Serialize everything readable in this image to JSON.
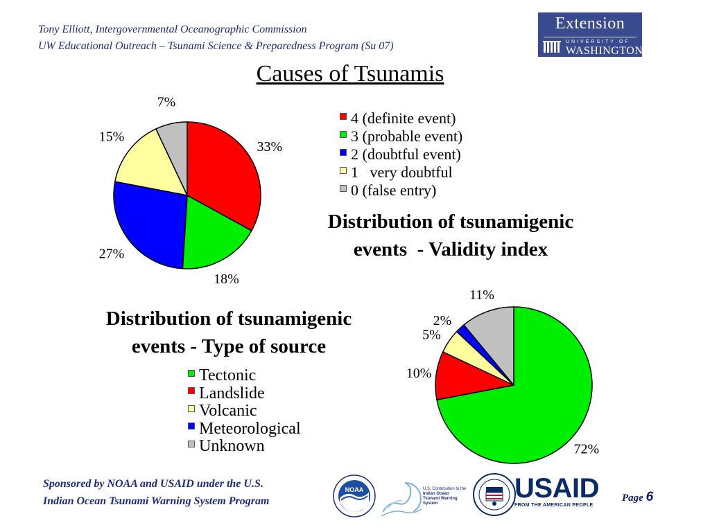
{
  "header": {
    "line1": "Tony Elliott, Intergovernmental Oceanographic Commission",
    "line2": "UW Educational Outreach – Tsunami Science & Preparedness Program (Su 07)"
  },
  "extension_logo": {
    "word": "Extension",
    "university": "UNIVERSITY OF",
    "washington": "WASHINGTON"
  },
  "page_title": "Causes of Tsunamis",
  "chart_data": [
    {
      "type": "pie",
      "title": "Distribution of tsunamigenic\nevents  - Validity index",
      "legend": [
        "4 (definite event)",
        "3 (probable event)",
        "2 (doubtful event)",
        "1   very doubtful",
        "0 (false entry)"
      ],
      "values": [
        33,
        18,
        27,
        15,
        7
      ],
      "labels": [
        "33%",
        "18%",
        "27%",
        "15%",
        "7%"
      ],
      "colors": [
        "#ff0000",
        "#00ee00",
        "#0000ff",
        "#ffffa0",
        "#c0c0c0"
      ],
      "start_angle": "12 o'clock",
      "direction": "clockwise",
      "legend_position": "right"
    },
    {
      "type": "pie",
      "title": "Distribution of tsunamigenic\nevents - Type of source",
      "legend": [
        "Tectonic",
        "Landslide",
        "Volcanic",
        "Meteorological",
        "Unknown"
      ],
      "values": [
        72,
        10,
        5,
        2,
        11
      ],
      "labels": [
        "72%",
        "10%",
        "5%",
        "2%",
        "11%"
      ],
      "colors": [
        "#00ee00",
        "#ff0000",
        "#ffffa0",
        "#0000ff",
        "#c0c0c0"
      ],
      "start_angle": "12 o'clock",
      "direction": "clockwise",
      "legend_position": "left"
    }
  ],
  "footer": {
    "line1": "Sponsored by NOAA and USAID under the U.S.",
    "line2": "Indian Ocean Tsunami Warning System Program",
    "page_label": "Page",
    "page_number": "6"
  },
  "logos": {
    "noaa": "NOAA",
    "iotws": [
      "U.S. Contribution to the",
      "Indian Ocean",
      "Tsunami Warning",
      "System"
    ],
    "usaid": "USAID",
    "usaid_tagline": "FROM THE AMERICAN PEOPLE"
  }
}
